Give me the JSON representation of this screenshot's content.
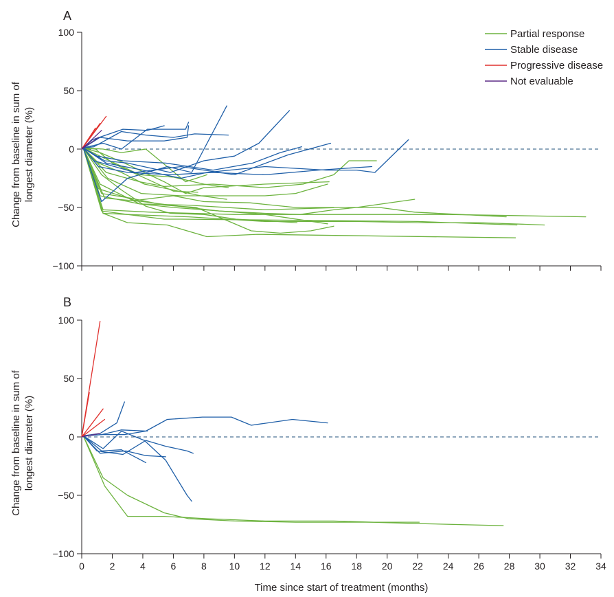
{
  "colors": {
    "Partial response": "#6db33f",
    "Stable disease": "#1f5fa8",
    "Progressive disease": "#e0312e",
    "Not evaluable": "#5b2a86",
    "axis": "#231f20",
    "zero_line": "#1f4f78"
  },
  "figure": {
    "xlabel": "Time since start of treatment (months)",
    "ylabel_line1": "Change from baseline in sum of",
    "ylabel_line2": "longest diameter (%)"
  },
  "legend": [
    {
      "label": "Partial response"
    },
    {
      "label": "Stable disease"
    },
    {
      "label": "Progressive disease"
    },
    {
      "label": "Not evaluable"
    }
  ],
  "chart_data": [
    {
      "type": "line",
      "panel": "A",
      "xlim": [
        0,
        34
      ],
      "ylim": [
        -100,
        100
      ],
      "xticks": [
        0,
        2,
        4,
        6,
        8,
        10,
        12,
        14,
        16,
        18,
        20,
        22,
        24,
        26,
        28,
        30,
        32,
        34
      ],
      "yticks": [
        -100,
        -50,
        0,
        50,
        100
      ],
      "reference_line_y": 0,
      "series": [
        {
          "group": "Partial response",
          "x": [
            0,
            0.1,
            1.4,
            3,
            5.4,
            6.5,
            22,
            28.5
          ],
          "y": [
            0,
            1,
            -55,
            -56,
            -60,
            -60,
            -62,
            -65
          ]
        },
        {
          "group": "Partial response",
          "x": [
            0,
            0.1,
            1.4,
            3,
            5.6,
            8.2,
            11.5,
            17,
            28.4
          ],
          "y": [
            0,
            1,
            -55,
            -63,
            -65,
            -75,
            -73,
            -74,
            -76
          ]
        },
        {
          "group": "Partial response",
          "x": [
            0,
            0.1,
            1.3,
            3,
            7,
            12,
            18,
            22,
            26,
            30.3
          ],
          "y": [
            0,
            1,
            -53,
            -56,
            -58,
            -62,
            -62,
            -63,
            -63,
            -65
          ]
        },
        {
          "group": "Partial response",
          "x": [
            0,
            0.1,
            1.4,
            4.5,
            10,
            16,
            24,
            33
          ],
          "y": [
            0,
            1,
            -52,
            -54,
            -56,
            -56,
            -56,
            -58
          ]
        },
        {
          "group": "Partial response",
          "x": [
            0,
            0.1,
            1.2,
            3.8,
            7,
            12,
            17,
            19.5,
            21.8,
            27.8
          ],
          "y": [
            0,
            1,
            -40,
            -47,
            -48,
            -52,
            -50,
            -50,
            -54,
            -58
          ]
        },
        {
          "group": "Partial response",
          "x": [
            0,
            0.1,
            1.5,
            4,
            7,
            9,
            12,
            14.3,
            16.5,
            18,
            21.8
          ],
          "y": [
            0,
            1,
            -42,
            -45,
            -50,
            -53,
            -55,
            -56,
            -52,
            -50,
            -43
          ]
        },
        {
          "group": "Partial response",
          "x": [
            0,
            0.1,
            1.3,
            3.2,
            5.4,
            7.5,
            11.1,
            13,
            15,
            16.5
          ],
          "y": [
            0,
            1,
            -38,
            -42,
            -48,
            -50,
            -70,
            -72,
            -70,
            -66
          ]
        },
        {
          "group": "Partial response",
          "x": [
            0,
            0.1,
            1.2,
            3.8,
            6,
            8,
            12,
            16.1
          ],
          "y": [
            0,
            1,
            -30,
            -47,
            -50,
            -52,
            -56,
            -64
          ]
        },
        {
          "group": "Partial response",
          "x": [
            0,
            0.1,
            1.1,
            3.5,
            6,
            8,
            11,
            14,
            16.5
          ],
          "y": [
            0,
            1,
            -34,
            -44,
            -40,
            -45,
            -46,
            -50,
            -50
          ]
        },
        {
          "group": "Partial response",
          "x": [
            0,
            0.1,
            1.6,
            3.8,
            5.4,
            8.6,
            12,
            14.5,
            16.5,
            17.5,
            19.3
          ],
          "y": [
            0,
            1,
            -20,
            -28,
            -32,
            -30,
            -33,
            -30,
            -22,
            -10,
            -10
          ]
        },
        {
          "group": "Partial response",
          "x": [
            0,
            0.1,
            1.7,
            3.9,
            6.5,
            9,
            12,
            14,
            16.1
          ],
          "y": [
            0,
            1,
            -25,
            -38,
            -40,
            -40,
            -40,
            -38,
            -30
          ]
        },
        {
          "group": "Partial response",
          "x": [
            0,
            0.1,
            1.5,
            3.8,
            6,
            8,
            9.6
          ],
          "y": [
            0,
            1,
            -8,
            -22,
            -24,
            -30,
            -33
          ]
        },
        {
          "group": "Partial response",
          "x": [
            0,
            0.1,
            1.2,
            2.8,
            5.4,
            6.8,
            8,
            12,
            16.2
          ],
          "y": [
            0,
            1,
            -3,
            -12,
            -28,
            -38,
            -33,
            -30,
            -28
          ]
        },
        {
          "group": "Partial response",
          "x": [
            0,
            0.1,
            0.9,
            2,
            4,
            6,
            7.6
          ],
          "y": [
            0,
            1,
            0,
            -12,
            -24,
            -36,
            -37
          ]
        },
        {
          "group": "Partial response",
          "x": [
            0,
            0.1,
            1.4,
            2.6,
            4.2,
            6.8,
            8.2
          ],
          "y": [
            0,
            1,
            0,
            -3,
            0,
            -28,
            -22
          ]
        },
        {
          "group": "Partial response",
          "x": [
            0,
            0.1,
            1.1,
            2.6,
            4.1,
            5.6,
            7.8,
            9.5
          ],
          "y": [
            0,
            1,
            -12,
            -20,
            -30,
            -34,
            -40,
            -43
          ]
        },
        {
          "group": "Partial response",
          "x": [
            0,
            0.1,
            1.3,
            2.6,
            4.2,
            5.8,
            8,
            10.1,
            14.1
          ],
          "y": [
            0,
            1,
            -22,
            -35,
            -49,
            -55,
            -56,
            -60,
            -63
          ]
        },
        {
          "group": "Stable disease",
          "x": [
            0,
            0.1,
            0.7,
            2.7,
            4.3,
            5.4
          ],
          "y": [
            0,
            1,
            8,
            17,
            16,
            20
          ]
        },
        {
          "group": "Stable disease",
          "x": [
            0,
            0.1,
            1.2,
            3,
            5.4,
            6.9,
            7
          ],
          "y": [
            0,
            1,
            10,
            7,
            7,
            10,
            20
          ]
        },
        {
          "group": "Stable disease",
          "x": [
            0,
            0.1,
            1.4,
            2.6,
            4.3,
            6.8,
            7
          ],
          "y": [
            0,
            1,
            5,
            0,
            17,
            17,
            23
          ]
        },
        {
          "group": "Stable disease",
          "x": [
            0,
            0.1,
            1.3,
            3,
            5.6,
            7.2,
            9.5
          ],
          "y": [
            0,
            1,
            -45,
            -25,
            -15,
            -20,
            37
          ]
        },
        {
          "group": "Stable disease",
          "x": [
            0,
            0.1,
            0.8,
            2.6,
            4.2,
            6,
            7.4,
            9.6
          ],
          "y": [
            0,
            1,
            2,
            15,
            12,
            10,
            13,
            12
          ]
        },
        {
          "group": "Stable disease",
          "x": [
            0,
            0.1,
            1.5,
            3,
            5.8,
            8,
            10,
            11.6,
            13.6
          ],
          "y": [
            0,
            1,
            -10,
            -12,
            -20,
            -10,
            -6,
            5,
            33
          ]
        },
        {
          "group": "Stable disease",
          "x": [
            0,
            0.1,
            1,
            2.7,
            5.5,
            8.6,
            11.2,
            13,
            14.4
          ],
          "y": [
            0,
            1,
            -6,
            -10,
            -12,
            -18,
            -12,
            -3,
            2
          ]
        },
        {
          "group": "Stable disease",
          "x": [
            0,
            0.1,
            0.8,
            3.5,
            6.5,
            10,
            13.5,
            16.3
          ],
          "y": [
            0,
            1,
            -10,
            -20,
            -15,
            -22,
            -5,
            5
          ]
        },
        {
          "group": "Stable disease",
          "x": [
            0,
            0.1,
            1.1,
            3,
            5.8,
            8.6,
            12,
            15.5,
            19
          ],
          "y": [
            0,
            1,
            -15,
            -20,
            -22,
            -20,
            -22,
            -18,
            -15
          ]
        },
        {
          "group": "Stable disease",
          "x": [
            0,
            0.1,
            1.6,
            4,
            6.5,
            8.2,
            12,
            16,
            18,
            19.2,
            21.4
          ],
          "y": [
            0,
            1,
            -12,
            -18,
            -25,
            -20,
            -15,
            -18,
            -18,
            -20,
            8
          ]
        }
      ]
    },
    {
      "type": "line",
      "panel": "B",
      "xlim": [
        0,
        34
      ],
      "ylim": [
        -100,
        100
      ],
      "xticks": [
        0,
        2,
        4,
        6,
        8,
        10,
        12,
        14,
        16,
        18,
        20,
        22,
        24,
        26,
        28,
        30,
        32,
        34
      ],
      "yticks": [
        -100,
        -50,
        0,
        50,
        100
      ],
      "reference_line_y": 0,
      "series": [
        {
          "group": "Partial response",
          "x": [
            0,
            0.1,
            1.4,
            3,
            5.4,
            7,
            10,
            14,
            18,
            22.1
          ],
          "y": [
            0,
            1,
            -35,
            -50,
            -65,
            -70,
            -72,
            -73,
            -73,
            -73
          ]
        },
        {
          "group": "Partial response",
          "x": [
            0,
            0.1,
            1.5,
            3,
            5.4,
            8.2,
            12,
            16.5,
            21.5,
            27.6
          ],
          "y": [
            0,
            1,
            -42,
            -68,
            -68,
            -70,
            -72,
            -72,
            -74,
            -76
          ]
        },
        {
          "group": "Stable disease",
          "x": [
            0,
            0.1,
            1.4,
            2.8,
            4.2,
            5.6,
            7.9,
            9.8,
            11.1,
            13.8,
            16.1
          ],
          "y": [
            0,
            1,
            2,
            2,
            5,
            15,
            17,
            17,
            10,
            15,
            12
          ]
        },
        {
          "group": "Stable disease",
          "x": [
            0,
            0.1,
            1.2,
            2.3,
            2.8
          ],
          "y": [
            0,
            1,
            3,
            12,
            30
          ]
        },
        {
          "group": "Stable disease",
          "x": [
            0,
            0.1,
            1.4,
            2.6,
            4.1,
            5.5,
            6.9,
            7.2
          ],
          "y": [
            0,
            1,
            -10,
            5,
            -3,
            -20,
            -50,
            -55
          ]
        },
        {
          "group": "Stable disease",
          "x": [
            0,
            0.1,
            1,
            2.7,
            4.2,
            5.5,
            6.9,
            7.3
          ],
          "y": [
            0,
            1,
            -12,
            -15,
            -3,
            -8,
            -12,
            -14
          ]
        },
        {
          "group": "Stable disease",
          "x": [
            0,
            0.1,
            1.2,
            2.9,
            4.2,
            5.5
          ],
          "y": [
            0,
            1,
            -14,
            -12,
            -16,
            -17
          ]
        },
        {
          "group": "Stable disease",
          "x": [
            0,
            0.1,
            1.3,
            2.6,
            4.2
          ],
          "y": [
            0,
            1,
            -12,
            -11,
            -22
          ]
        },
        {
          "group": "Stable disease",
          "x": [
            0,
            0.1,
            1.3,
            2.6,
            4.3
          ],
          "y": [
            0,
            1,
            2,
            6,
            5
          ]
        },
        {
          "group": "Progressive disease",
          "x": [
            0,
            1.2
          ],
          "y": [
            0,
            99
          ]
        },
        {
          "group": "Progressive disease",
          "x": [
            0,
            0.5
          ],
          "y": [
            0,
            38
          ]
        },
        {
          "group": "Progressive disease",
          "x": [
            0,
            1.4
          ],
          "y": [
            0,
            24
          ]
        },
        {
          "group": "Progressive disease",
          "x": [
            0,
            1.5
          ],
          "y": [
            0,
            15
          ]
        },
        {
          "group": "Not evaluable",
          "x": [
            0,
            1.2
          ],
          "y": [
            0,
            3
          ]
        }
      ]
    }
  ],
  "chart_data_panel_A_extra": [
    {
      "group": "Progressive disease",
      "x": [
        0,
        1.6
      ],
      "y": [
        0,
        28
      ]
    },
    {
      "group": "Progressive disease",
      "x": [
        0,
        1.2
      ],
      "y": [
        0,
        22
      ]
    },
    {
      "group": "Progressive disease",
      "x": [
        0,
        0.9
      ],
      "y": [
        0,
        18
      ]
    },
    {
      "group": "Not evaluable",
      "x": [
        0,
        1.3
      ],
      "y": [
        0,
        16
      ]
    },
    {
      "group": "Not evaluable",
      "x": [
        0,
        1.1
      ],
      "y": [
        0,
        10
      ]
    }
  ]
}
